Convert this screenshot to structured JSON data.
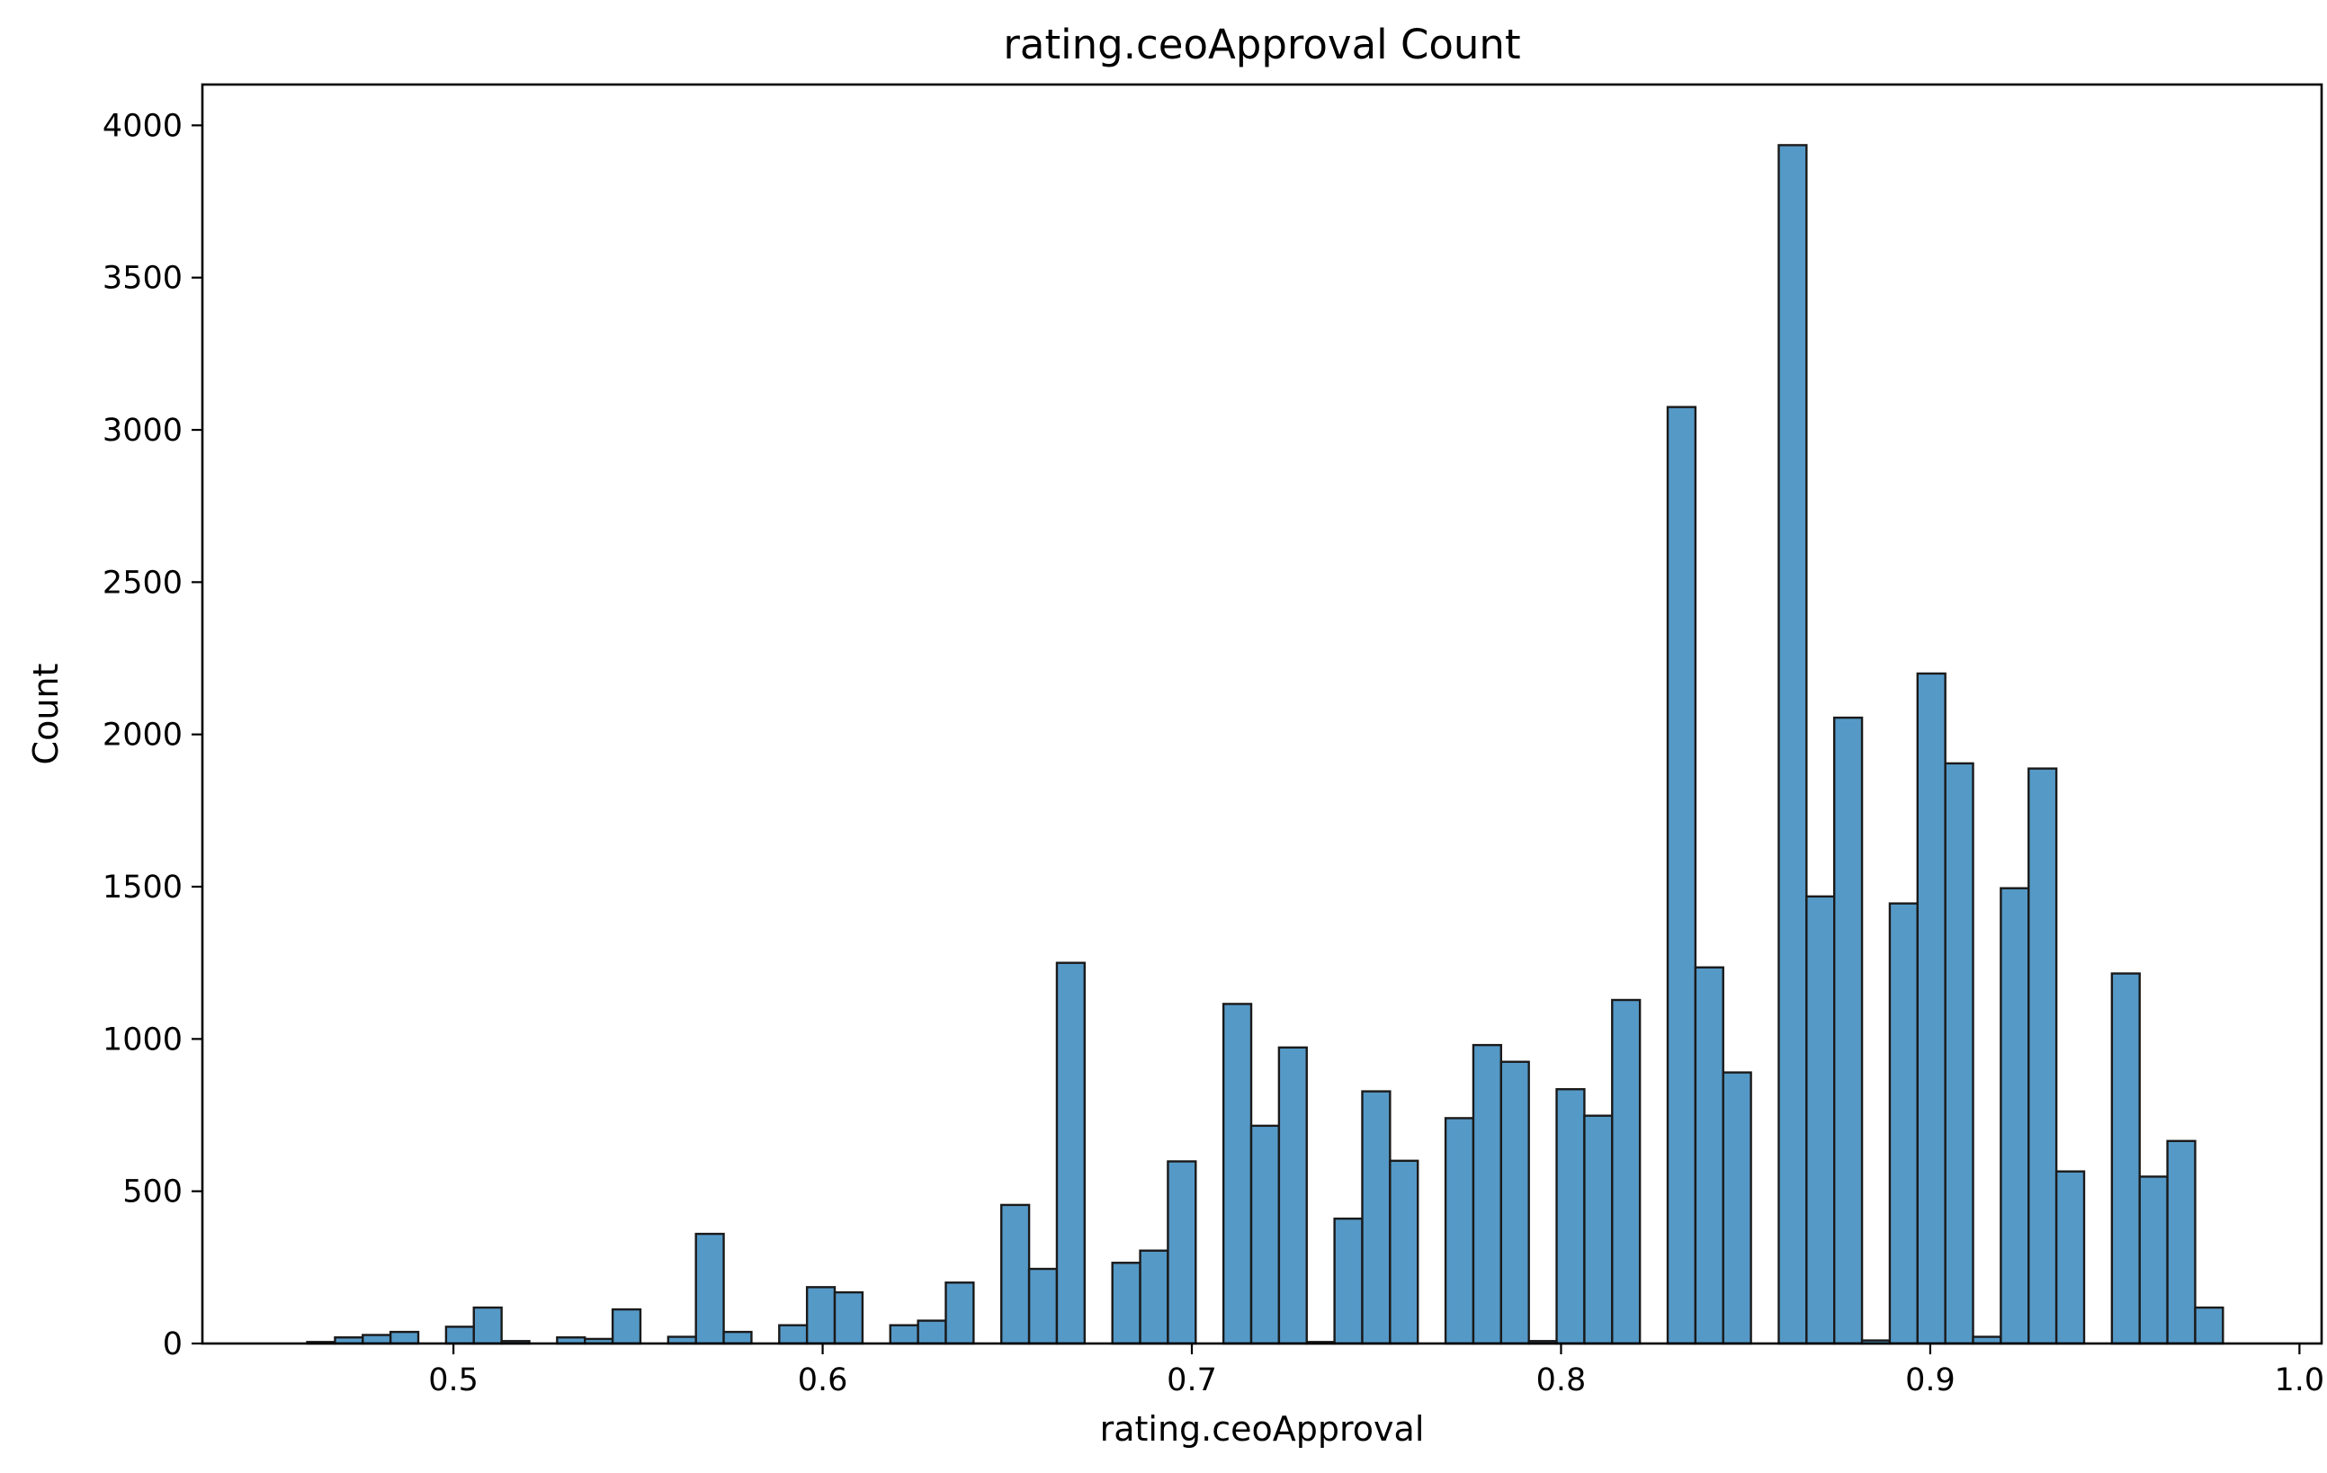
{
  "chart_data": {
    "type": "bar",
    "subtype": "histogram",
    "title": "rating.ceoApproval Count",
    "xlabel": "rating.ceoApproval",
    "ylabel": "Count",
    "xlim": [
      0.432,
      1.006
    ],
    "ylim": [
      0,
      4134
    ],
    "xticks": [
      0.5,
      0.6,
      0.7,
      0.8,
      0.9,
      1.0
    ],
    "xtick_labels": [
      "0.5",
      "0.6",
      "0.7",
      "0.8",
      "0.9",
      "1.0"
    ],
    "yticks": [
      0,
      500,
      1000,
      1500,
      2000,
      2500,
      3000,
      3500,
      4000
    ],
    "ytick_labels": [
      "0",
      "500",
      "1000",
      "1500",
      "2000",
      "2500",
      "3000",
      "3500",
      "4000"
    ],
    "bin_start": 0.4604,
    "bin_width": 0.00752,
    "counts": [
      5,
      20,
      28,
      38,
      0,
      55,
      118,
      8,
      0,
      20,
      15,
      112,
      0,
      22,
      360,
      38,
      0,
      60,
      185,
      168,
      0,
      60,
      75,
      200,
      0,
      455,
      245,
      1250,
      0,
      265,
      305,
      598,
      0,
      1115,
      715,
      972,
      5,
      410,
      828,
      600,
      0,
      740,
      980,
      925,
      8,
      835,
      748,
      1128,
      0,
      3075,
      1235,
      890,
      0,
      3935,
      1468,
      2055,
      10,
      1445,
      2200,
      1905,
      22,
      1495,
      1888,
      565,
      0,
      1215,
      548,
      665,
      118
    ],
    "color": "#5599c7",
    "edge_color": "#1a1a1a",
    "grid": false,
    "legend": "none"
  }
}
